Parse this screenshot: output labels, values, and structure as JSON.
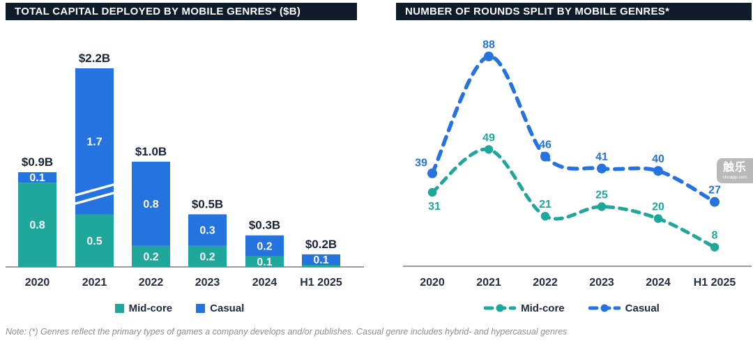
{
  "note": "Note: (*) Genres reflect the primary types of games a company develops and/or publishes. Casual genre includes hybrid- and hypercasual genres",
  "watermark": {
    "name": "触乐",
    "domain": "chuapp.com"
  },
  "colors": {
    "header_bg": "#0E1B2A",
    "mid_core": "#1FA79B",
    "casual": "#2573DF",
    "total_label": "#182338",
    "tick_label": "#222D3D",
    "axis": "#9C9C9C",
    "watermark_bg": "#B4B4B4"
  },
  "chart_data": [
    {
      "type": "bar",
      "stacked": true,
      "title": "TOTAL CAPITAL DEPLOYED BY MOBILE GENRES* ($B)",
      "categories": [
        "2020",
        "2021",
        "2022",
        "2023",
        "2024",
        "H1 2025"
      ],
      "series": [
        {
          "name": "Mid-core",
          "color_key": "mid_core",
          "values": [
            0.8,
            0.5,
            0.2,
            0.2,
            0.1,
            0.0
          ]
        },
        {
          "name": "Casual",
          "color_key": "casual",
          "values": [
            0.1,
            1.7,
            0.8,
            0.3,
            0.2,
            0.1
          ]
        }
      ],
      "totals": [
        "$0.9B",
        "$2.2B",
        "$1.0B",
        "$0.5B",
        "$0.3B",
        "$0.2B"
      ],
      "broken_bar_category": "2021",
      "legend": [
        "Mid-core",
        "Casual"
      ],
      "ylabel": "$B",
      "grid": false
    },
    {
      "type": "line",
      "style": "dashed-with-points",
      "title": "NUMBER OF ROUNDS SPLIT BY MOBILE GENRES*",
      "categories": [
        "2020",
        "2021",
        "2022",
        "2023",
        "2024",
        "H1 2025"
      ],
      "series": [
        {
          "name": "Mid-core",
          "color_key": "mid_core",
          "values": [
            31,
            49,
            21,
            25,
            20,
            8
          ]
        },
        {
          "name": "Casual",
          "color_key": "casual",
          "values": [
            39,
            88,
            46,
            41,
            40,
            27
          ]
        }
      ],
      "legend": [
        "Mid-core",
        "Casual"
      ],
      "ylim": [
        0,
        94
      ],
      "grid": false
    }
  ]
}
